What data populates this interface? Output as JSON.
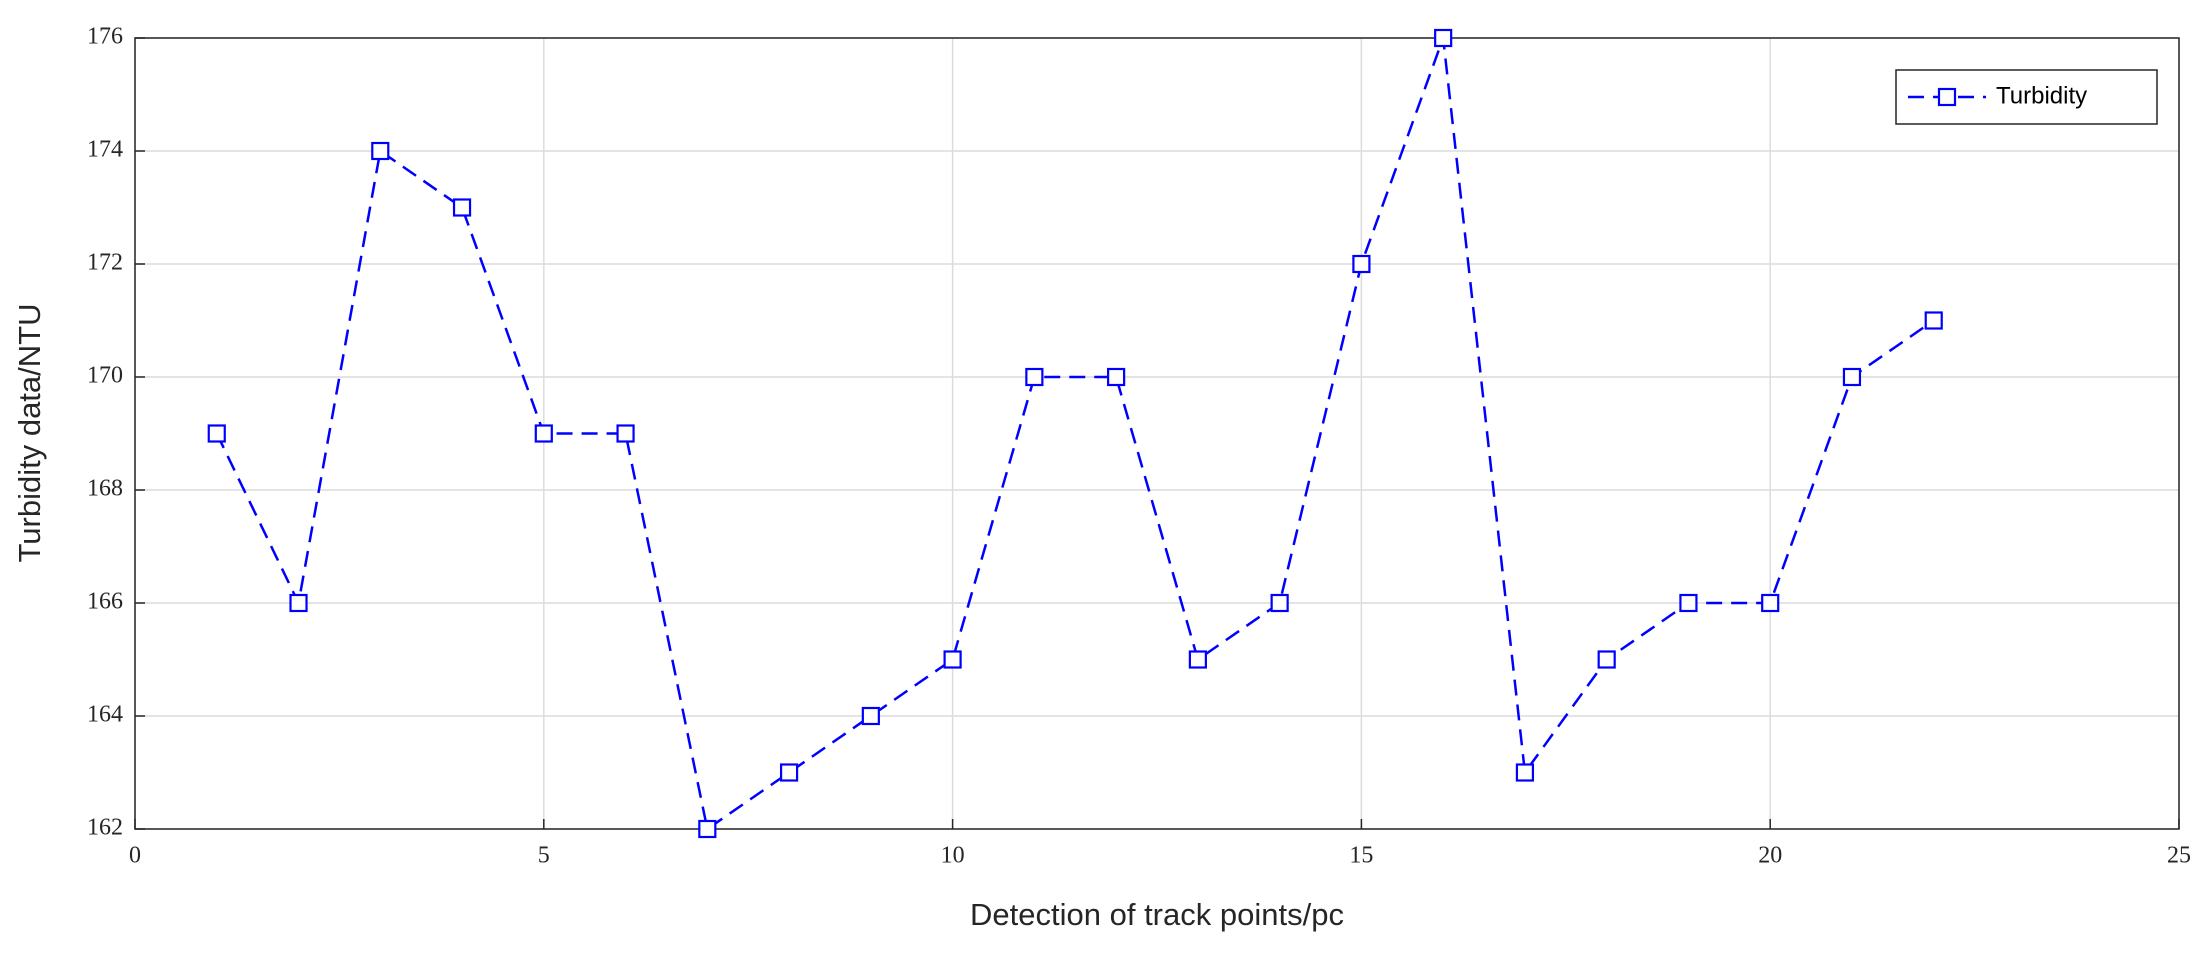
{
  "chart_data": {
    "type": "line",
    "x_label": "Detection of track points/pc",
    "y_label": "Turbidity data/NTU",
    "x": [
      1,
      2,
      3,
      4,
      5,
      6,
      7,
      8,
      9,
      10,
      11,
      12,
      13,
      14,
      15,
      16,
      17,
      18,
      19,
      20,
      21,
      22
    ],
    "series": [
      {
        "name": "Turbidity",
        "color": "#0000ff",
        "line_style": "dashed",
        "marker": "square",
        "values": [
          169,
          166,
          174,
          173,
          169,
          169,
          162,
          163,
          164,
          165,
          170,
          170,
          165,
          166,
          172,
          176,
          163,
          165,
          166,
          166,
          170,
          171
        ]
      }
    ],
    "xlim": [
      0,
      25
    ],
    "xticks": [
      0,
      5,
      10,
      15,
      20,
      25
    ],
    "ylim": [
      162,
      176
    ],
    "yticks": [
      162,
      164,
      166,
      168,
      170,
      172,
      174,
      176
    ],
    "grid": true,
    "legend": "northeast"
  }
}
